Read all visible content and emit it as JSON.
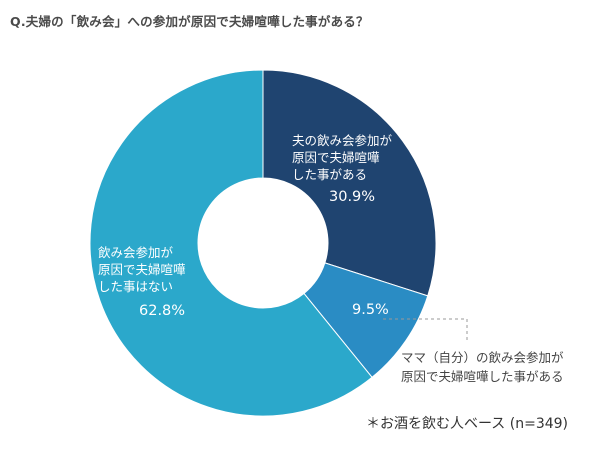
{
  "question": "Q.夫婦の「飲み会」への参加が原因で夫婦喧嘩した事がある？",
  "chart_data": {
    "type": "pie",
    "style": "donut",
    "slices": [
      {
        "label": "夫の飲み会参加が\n原因で夫婦喧嘩\nした事がある",
        "value": 30.9,
        "value_label": "30.9%",
        "color": "#1f4470"
      },
      {
        "label": "ママ（自分）の飲み会参加が\n原因で夫婦喧嘩した事がある",
        "value": 9.5,
        "value_label": "9.5%",
        "color": "#2a8cc4"
      },
      {
        "label": "飲み会参加が\n原因で夫婦喧嘩\nした事はない",
        "value": 62.8,
        "value_label": "62.8%",
        "color": "#2ba8cb"
      }
    ]
  },
  "footnote": "＊お酒を飲む人ベース (n=349)"
}
